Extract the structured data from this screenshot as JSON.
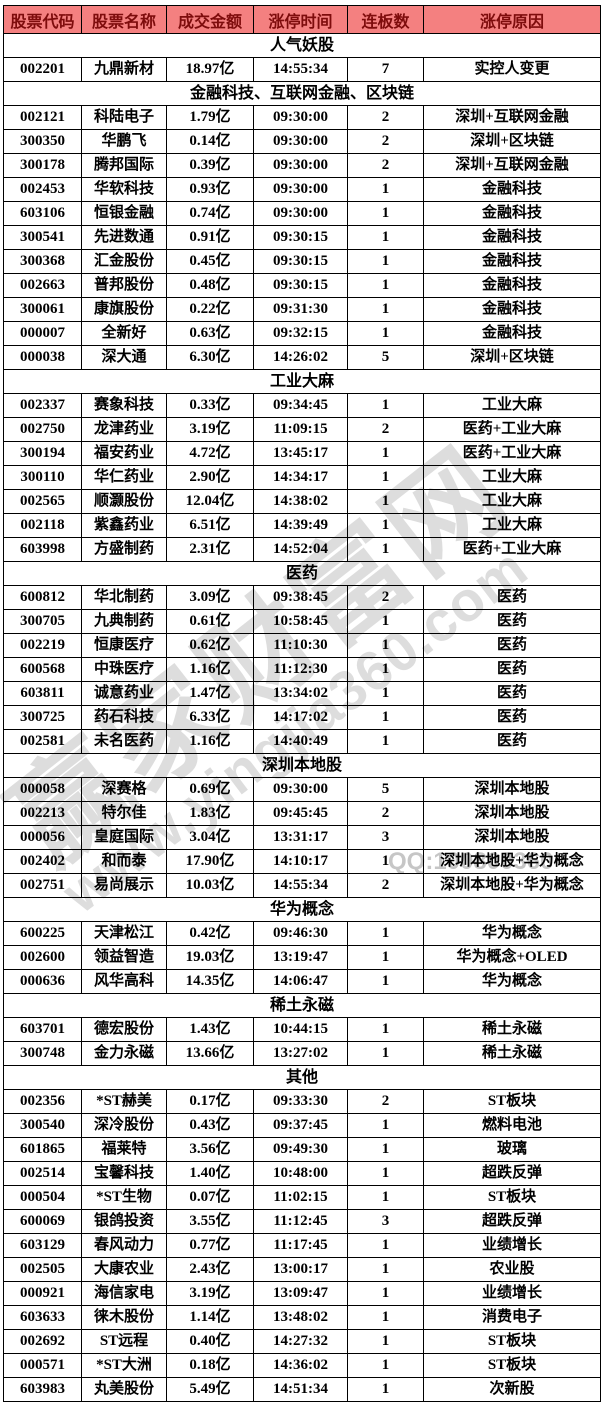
{
  "chart_data": {
    "type": "table",
    "columns": [
      "股票代码",
      "股票名称",
      "成交金额",
      "涨停时间",
      "连板数",
      "涨停原因"
    ],
    "sections": [
      {
        "title": "人气妖股",
        "rows": [
          [
            "002201",
            "九鼎新材",
            "18.97亿",
            "14:55:34",
            "7",
            "实控人变更"
          ]
        ]
      },
      {
        "title": "金融科技、互联网金融、区块链",
        "rows": [
          [
            "002121",
            "科陆电子",
            "1.79亿",
            "09:30:00",
            "2",
            "深圳+互联网金融"
          ],
          [
            "300350",
            "华鹏飞",
            "0.14亿",
            "09:30:00",
            "2",
            "深圳+区块链"
          ],
          [
            "300178",
            "腾邦国际",
            "0.39亿",
            "09:30:00",
            "2",
            "深圳+互联网金融"
          ],
          [
            "002453",
            "华软科技",
            "0.93亿",
            "09:30:00",
            "1",
            "金融科技"
          ],
          [
            "603106",
            "恒银金融",
            "0.74亿",
            "09:30:00",
            "1",
            "金融科技"
          ],
          [
            "300541",
            "先进数通",
            "0.91亿",
            "09:30:15",
            "1",
            "金融科技"
          ],
          [
            "300368",
            "汇金股份",
            "0.45亿",
            "09:30:15",
            "1",
            "金融科技"
          ],
          [
            "002663",
            "普邦股份",
            "0.48亿",
            "09:30:15",
            "1",
            "金融科技"
          ],
          [
            "300061",
            "康旗股份",
            "0.22亿",
            "09:31:30",
            "1",
            "金融科技"
          ],
          [
            "000007",
            "全新好",
            "0.63亿",
            "09:32:15",
            "1",
            "金融科技"
          ],
          [
            "000038",
            "深大通",
            "6.30亿",
            "14:26:02",
            "5",
            "深圳+区块链"
          ]
        ]
      },
      {
        "title": "工业大麻",
        "rows": [
          [
            "002337",
            "赛象科技",
            "0.33亿",
            "09:34:45",
            "1",
            "工业大麻"
          ],
          [
            "002750",
            "龙津药业",
            "3.19亿",
            "11:09:15",
            "2",
            "医药+工业大麻"
          ],
          [
            "300194",
            "福安药业",
            "4.72亿",
            "13:45:17",
            "1",
            "医药+工业大麻"
          ],
          [
            "300110",
            "华仁药业",
            "2.90亿",
            "14:34:17",
            "1",
            "工业大麻"
          ],
          [
            "002565",
            "顺灏股份",
            "12.04亿",
            "14:38:02",
            "1",
            "工业大麻"
          ],
          [
            "002118",
            "紫鑫药业",
            "6.51亿",
            "14:39:49",
            "1",
            "工业大麻"
          ],
          [
            "603998",
            "方盛制药",
            "2.31亿",
            "14:52:04",
            "1",
            "医药+工业大麻"
          ]
        ]
      },
      {
        "title": "医药",
        "rows": [
          [
            "600812",
            "华北制药",
            "3.09亿",
            "09:38:45",
            "2",
            "医药"
          ],
          [
            "300705",
            "九典制药",
            "0.61亿",
            "10:58:45",
            "1",
            "医药"
          ],
          [
            "002219",
            "恒康医疗",
            "0.62亿",
            "11:10:30",
            "1",
            "医药"
          ],
          [
            "600568",
            "中珠医疗",
            "1.16亿",
            "11:12:30",
            "1",
            "医药"
          ],
          [
            "603811",
            "诚意药业",
            "1.47亿",
            "13:34:02",
            "1",
            "医药"
          ],
          [
            "300725",
            "药石科技",
            "6.33亿",
            "14:17:02",
            "1",
            "医药"
          ],
          [
            "002581",
            "未名医药",
            "1.16亿",
            "14:40:49",
            "1",
            "医药"
          ]
        ]
      },
      {
        "title": "深圳本地股",
        "rows": [
          [
            "000058",
            "深赛格",
            "0.69亿",
            "09:30:00",
            "5",
            "深圳本地股"
          ],
          [
            "002213",
            "特尔佳",
            "1.83亿",
            "09:45:45",
            "2",
            "深圳本地股"
          ],
          [
            "000056",
            "皇庭国际",
            "3.04亿",
            "13:31:17",
            "3",
            "深圳本地股"
          ],
          [
            "002402",
            "和而泰",
            "17.90亿",
            "14:10:17",
            "1",
            "深圳本地股+华为概念"
          ],
          [
            "002751",
            "易尚展示",
            "10.03亿",
            "14:55:34",
            "2",
            "深圳本地股+华为概念"
          ]
        ]
      },
      {
        "title": "华为概念",
        "rows": [
          [
            "600225",
            "天津松江",
            "0.42亿",
            "09:46:30",
            "1",
            "华为概念"
          ],
          [
            "002600",
            "领益智造",
            "19.03亿",
            "13:19:47",
            "1",
            "华为概念+OLED"
          ],
          [
            "000636",
            "风华高科",
            "14.35亿",
            "14:06:47",
            "1",
            "华为概念"
          ]
        ]
      },
      {
        "title": "稀土永磁",
        "rows": [
          [
            "603701",
            "德宏股份",
            "1.43亿",
            "10:44:15",
            "1",
            "稀土永磁"
          ],
          [
            "300748",
            "金力永磁",
            "13.66亿",
            "13:27:02",
            "1",
            "稀土永磁"
          ]
        ]
      },
      {
        "title": "其他",
        "rows": [
          [
            "002356",
            "*ST赫美",
            "0.17亿",
            "09:33:30",
            "2",
            "ST板块"
          ],
          [
            "300540",
            "深冷股份",
            "0.43亿",
            "09:37:45",
            "1",
            "燃料电池"
          ],
          [
            "601865",
            "福莱特",
            "3.56亿",
            "09:49:30",
            "1",
            "玻璃"
          ],
          [
            "002514",
            "宝馨科技",
            "1.40亿",
            "10:48:00",
            "1",
            "超跌反弹"
          ],
          [
            "000504",
            "*ST生物",
            "0.07亿",
            "11:02:15",
            "1",
            "ST板块"
          ],
          [
            "600069",
            "银鸽投资",
            "3.55亿",
            "11:12:45",
            "3",
            "超跌反弹"
          ],
          [
            "603129",
            "春风动力",
            "0.77亿",
            "11:17:45",
            "1",
            "业绩增长"
          ],
          [
            "002505",
            "大康农业",
            "2.43亿",
            "13:00:17",
            "1",
            "农业股"
          ],
          [
            "000921",
            "海信家电",
            "3.19亿",
            "13:09:47",
            "1",
            "业绩增长"
          ],
          [
            "603633",
            "徕木股份",
            "1.14亿",
            "13:48:02",
            "1",
            "消费电子"
          ],
          [
            "002692",
            "ST远程",
            "0.40亿",
            "14:27:32",
            "1",
            "ST板块"
          ],
          [
            "000571",
            "*ST大洲",
            "0.18亿",
            "14:36:02",
            "1",
            "ST板块"
          ],
          [
            "603983",
            "丸美股份",
            "5.49亿",
            "14:51:34",
            "1",
            "次新股"
          ]
        ]
      }
    ]
  },
  "watermark": {
    "brand": "赢家财富网",
    "url": "www.yingjia360.com",
    "qq": "QQ:100800360"
  },
  "colors": {
    "header_bg": "#F48080",
    "header_text": "#7E0C0C",
    "border": "#000000",
    "watermark": "#C1C1C1"
  }
}
